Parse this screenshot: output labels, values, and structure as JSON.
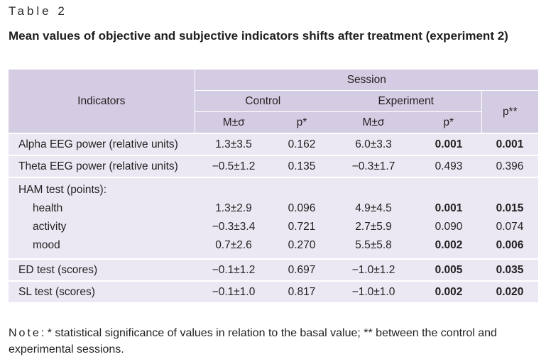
{
  "caption": "Table 2",
  "title": "Mean values of objective and subjective indicators shifts after treatment (experiment 2)",
  "header": {
    "indicators": "Indicators",
    "session": "Session",
    "control": "Control",
    "experiment": "Experiment",
    "p_between": "p**",
    "mean_sd": "M±σ",
    "p_star": "p*"
  },
  "rows": {
    "alpha": {
      "label": "Alpha EEG power (relative units)",
      "c_m": "1.3±3.5",
      "c_p": "0.162",
      "e_m": "6.0±3.3",
      "e_p": "0.001",
      "p2": "0.001"
    },
    "theta": {
      "label": "Theta EEG power (relative units)",
      "c_m": "−0.5±1.2",
      "c_p": "0.135",
      "e_m": "−0.3±1.7",
      "e_p": "0.493",
      "p2": "0.396"
    },
    "ham": {
      "label": "HAM test (points):"
    },
    "health": {
      "label": "health",
      "c_m": "1.3±2.9",
      "c_p": "0.096",
      "e_m": "4.9±4.5",
      "e_p": "0.001",
      "p2": "0.015"
    },
    "activity": {
      "label": "activity",
      "c_m": "−0.3±3.4",
      "c_p": "0.721",
      "e_m": "2.7±5.9",
      "e_p": "0.090",
      "p2": "0.074"
    },
    "mood": {
      "label": "mood",
      "c_m": "0.7±2.6",
      "c_p": "0.270",
      "e_m": "5.5±5.8",
      "e_p": "0.002",
      "p2": "0.006"
    },
    "ed": {
      "label": "ED test (scores)",
      "c_m": "−0.1±1.2",
      "c_p": "0.697",
      "e_m": "−1.0±1.2",
      "e_p": "0.005",
      "p2": "0.035"
    },
    "sl": {
      "label": "SL test (scores)",
      "c_m": "−0.1±1.0",
      "c_p": "0.817",
      "e_m": "−1.0±1.0",
      "e_p": "0.002",
      "p2": "0.020"
    }
  },
  "note": {
    "prefix": "Note",
    "text": ": * statistical significance of values in relation to the basal value; ** between the control and experimental sessions."
  },
  "colors": {
    "header_bg": "#d4cce2",
    "body_bg": "#ece8f3"
  }
}
